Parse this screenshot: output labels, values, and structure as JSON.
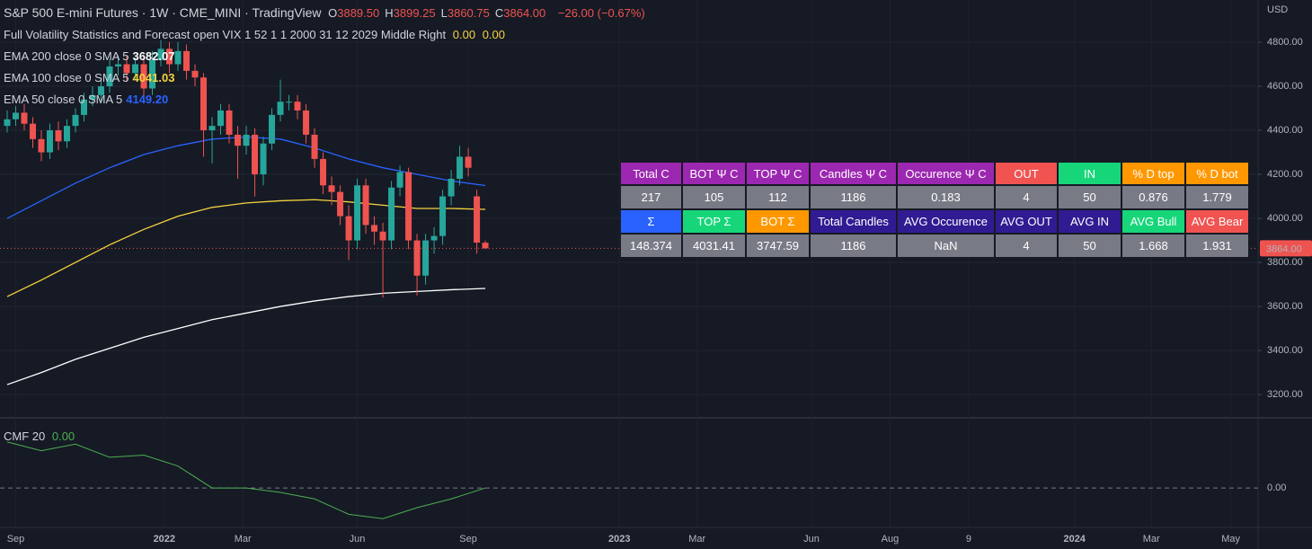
{
  "chart_data": {
    "type": "candlestick",
    "title": "S&P 500 E-mini Futures · 1W · CME_MINI · TradingView",
    "ohlc_prefixes": [
      "O",
      "H",
      "L",
      "C"
    ],
    "ohlc_labels": [
      "3889.50",
      "3899.25",
      "3860.75",
      "3864.00"
    ],
    "change_label": "−26.00 (−0.67%)",
    "currency": "USD",
    "up_color": "#26a69a",
    "down_color": "#ef5350",
    "x": [
      0,
      1,
      2,
      3,
      4,
      5,
      6,
      7,
      8,
      9,
      10,
      11,
      12,
      13,
      14,
      15,
      16,
      17,
      18,
      19,
      20,
      21,
      22,
      23,
      24,
      25,
      26,
      27,
      28,
      29,
      30,
      31,
      32,
      33,
      34,
      35,
      36,
      37,
      38,
      39,
      40,
      41,
      42,
      43,
      44,
      45,
      46,
      47,
      48,
      49,
      50,
      51,
      52,
      53,
      54,
      55,
      56
    ],
    "open": [
      4420,
      4450,
      4480,
      4430,
      4360,
      4300,
      4400,
      4350,
      4420,
      4470,
      4540,
      4560,
      4600,
      4690,
      4700,
      4660,
      4700,
      4590,
      4720,
      4770,
      4700,
      4760,
      4670,
      4640,
      4400,
      4420,
      4490,
      4380,
      4330,
      4380,
      4200,
      4340,
      4470,
      4530,
      4530,
      4490,
      4380,
      4270,
      4150,
      4120,
      4010,
      3900,
      4150,
      3970,
      3940,
      3900,
      4140,
      4210,
      3900,
      3740,
      3900,
      3920,
      4100,
      4180,
      4280,
      4100,
      3889.5
    ],
    "high": [
      4490,
      4510,
      4520,
      4460,
      4400,
      4430,
      4440,
      4450,
      4500,
      4570,
      4600,
      4640,
      4720,
      4740,
      4740,
      4730,
      4740,
      4760,
      4810,
      4800,
      4800,
      4790,
      4700,
      4660,
      4460,
      4520,
      4520,
      4420,
      4420,
      4410,
      4370,
      4500,
      4630,
      4560,
      4560,
      4520,
      4410,
      4300,
      4190,
      4150,
      4060,
      4180,
      4180,
      4010,
      3980,
      4170,
      4240,
      4230,
      3930,
      3930,
      3960,
      4130,
      4220,
      4330,
      4320,
      4130,
      3899.25
    ],
    "low": [
      4390,
      4420,
      4400,
      4320,
      4260,
      4270,
      4310,
      4320,
      4390,
      4440,
      4510,
      4530,
      4570,
      4650,
      4620,
      4630,
      4550,
      4560,
      4690,
      4660,
      4670,
      4630,
      4600,
      4280,
      4250,
      4380,
      4340,
      4180,
      4290,
      4100,
      4150,
      4310,
      4440,
      4490,
      4450,
      4340,
      4230,
      4110,
      4060,
      3970,
      3810,
      3860,
      3930,
      3880,
      3640,
      3860,
      4100,
      3860,
      3650,
      3700,
      3840,
      3880,
      4060,
      4150,
      4190,
      3840,
      3860.75
    ],
    "close": [
      4450,
      4480,
      4430,
      4360,
      4300,
      4400,
      4350,
      4420,
      4470,
      4540,
      4560,
      4600,
      4690,
      4700,
      4660,
      4700,
      4590,
      4720,
      4770,
      4700,
      4760,
      4670,
      4640,
      4400,
      4420,
      4490,
      4380,
      4330,
      4380,
      4200,
      4340,
      4470,
      4530,
      4530,
      4490,
      4380,
      4270,
      4150,
      4120,
      4010,
      3900,
      4150,
      3970,
      3940,
      3900,
      4140,
      4210,
      3900,
      3740,
      3900,
      3920,
      4100,
      4180,
      4280,
      4230,
      3890,
      3864
    ],
    "series": [
      {
        "name": "EMA 200 close 0 SMA 5",
        "value_label": "3682.07",
        "color": "#ffffff",
        "x": [
          0,
          4,
          8,
          12,
          16,
          20,
          24,
          28,
          32,
          36,
          40,
          44,
          48,
          52,
          56
        ],
        "values": [
          3245,
          3300,
          3360,
          3410,
          3460,
          3500,
          3540,
          3570,
          3600,
          3625,
          3645,
          3660,
          3668,
          3676,
          3682
        ]
      },
      {
        "name": "EMA 100 close 0 SMA 5",
        "value_label": "4041.03",
        "color": "#f5d33f",
        "x": [
          0,
          4,
          8,
          12,
          16,
          20,
          24,
          28,
          32,
          36,
          40,
          44,
          48,
          52,
          56
        ],
        "values": [
          3645,
          3720,
          3800,
          3880,
          3950,
          4010,
          4050,
          4070,
          4080,
          4085,
          4075,
          4060,
          4045,
          4045,
          4041
        ]
      },
      {
        "name": "EMA 50 close 0 SMA 5",
        "value_label": "4149.20",
        "color": "#2962ff",
        "x": [
          0,
          4,
          8,
          12,
          16,
          20,
          24,
          28,
          32,
          36,
          40,
          44,
          48,
          52,
          56
        ],
        "values": [
          4000,
          4080,
          4160,
          4230,
          4290,
          4330,
          4360,
          4370,
          4360,
          4320,
          4270,
          4230,
          4200,
          4170,
          4149
        ]
      }
    ],
    "indicator": {
      "name": "Full Volatility Statistics and Forecast open VIX 1 52 1 1 2000 31 12 2029 Middle Right",
      "value_labels": [
        "0.00",
        "0.00"
      ]
    },
    "xlim": [
      -0.84,
      146.5
    ],
    "xticks": [
      {
        "value": 1,
        "label": "Sep"
      },
      {
        "value": 18.4,
        "label": "2022"
      },
      {
        "value": 27.6,
        "label": "Mar"
      },
      {
        "value": 41,
        "label": "Jun"
      },
      {
        "value": 54,
        "label": "Sep"
      },
      {
        "value": 71.7,
        "label": "2023"
      },
      {
        "value": 80.8,
        "label": "Mar"
      },
      {
        "value": 94.2,
        "label": "Jun"
      },
      {
        "value": 103.4,
        "label": "Aug"
      },
      {
        "value": 112.6,
        "label": "9"
      },
      {
        "value": 125,
        "label": "2024"
      },
      {
        "value": 134,
        "label": "Mar"
      },
      {
        "value": 143.3,
        "label": "May"
      }
    ],
    "ylim": [
      3094.3,
      4991.8
    ],
    "yticks": [
      {
        "value": 3200,
        "label": "3200.00"
      },
      {
        "value": 3400,
        "label": "3400.00"
      },
      {
        "value": 3600,
        "label": "3600.00"
      },
      {
        "value": 3800,
        "label": "3800.00"
      },
      {
        "value": 4000,
        "label": "4000.00"
      },
      {
        "value": 4200,
        "label": "4200.00"
      },
      {
        "value": 4400,
        "label": "4400.00"
      },
      {
        "value": 4600,
        "label": "4600.00"
      },
      {
        "value": 4800,
        "label": "4800.00"
      }
    ],
    "grid": true,
    "cmf": {
      "name": "CMF 20",
      "value_label": "0.00",
      "color": "#4caf50",
      "x": [
        0,
        4,
        8,
        12,
        16,
        20,
        24,
        28,
        32,
        36,
        40,
        44,
        48,
        52,
        56
      ],
      "values": [
        0.21,
        0.17,
        0.2,
        0.14,
        0.15,
        0.1,
        0.0,
        0.0,
        -0.02,
        -0.05,
        -0.12,
        -0.14,
        -0.09,
        -0.05,
        0.0
      ],
      "ylim": [
        -0.18,
        0.32
      ],
      "yticks": [
        {
          "value": 0,
          "label": "0.00"
        }
      ]
    }
  },
  "table": {
    "rows": [
      [
        "Total C",
        "BOT Ψ C",
        "TOP Ψ C",
        "Candles Ψ C",
        "Occurence Ψ C",
        "OUT",
        "IN",
        "% D top",
        "% D bot"
      ],
      [
        "217",
        "105",
        "112",
        "1186",
        "0.183",
        "4",
        "50",
        "0.876",
        "1.779"
      ],
      [
        "Σ",
        "TOP Σ",
        "BOT Σ",
        "Total Candles",
        "AVG Occurence",
        "AVG OUT",
        "AVG IN",
        "AVG Bull",
        "AVG Bear"
      ],
      [
        "148.374",
        "4031.41",
        "3747.59",
        "1186",
        "NaN",
        "4",
        "50",
        "1.668",
        "1.931"
      ]
    ]
  }
}
